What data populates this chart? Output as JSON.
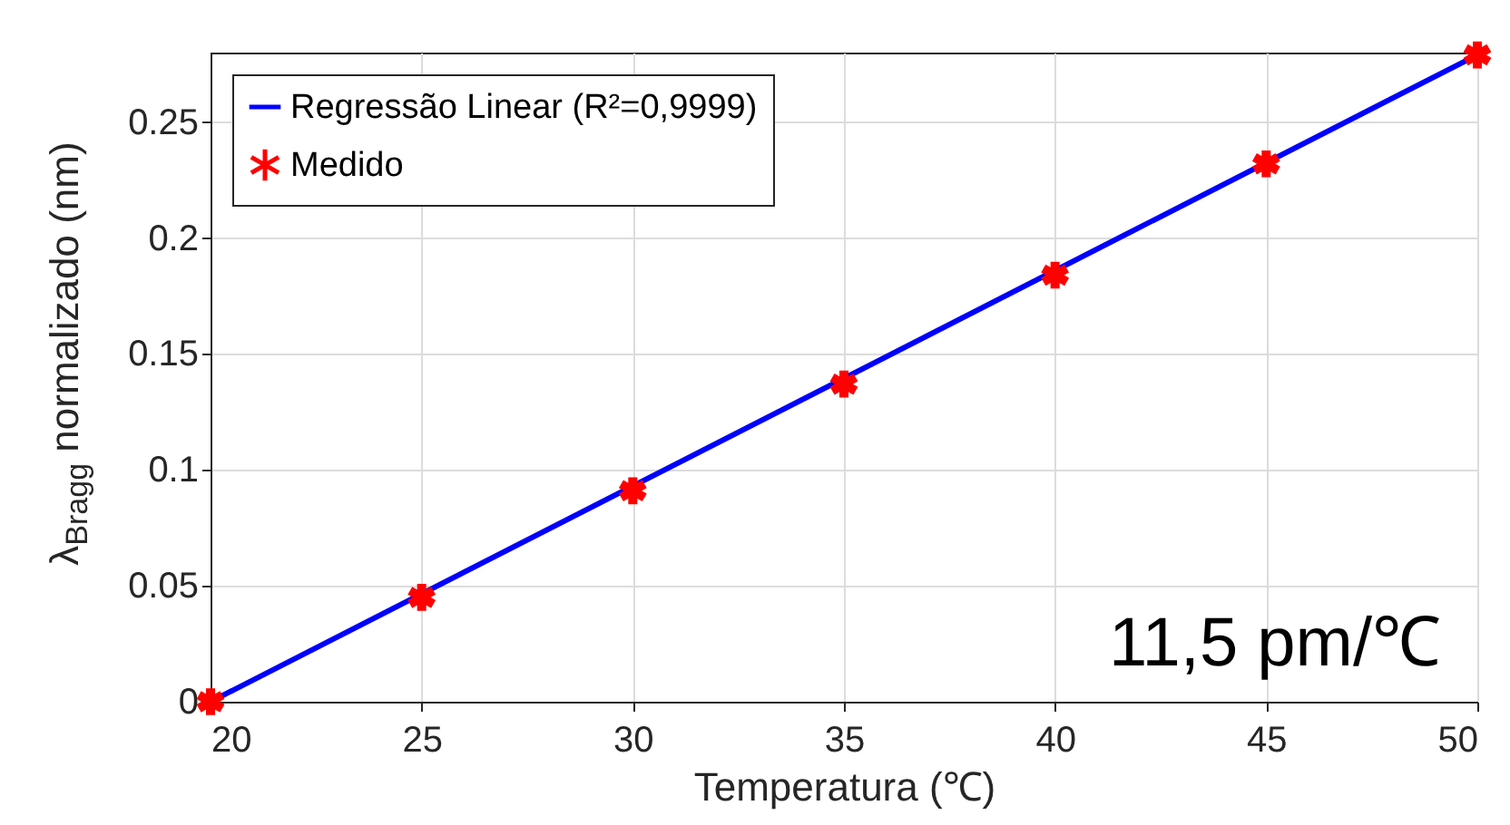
{
  "chart_data": {
    "type": "scatter",
    "xlabel": "Temperatura (℃)",
    "ylabel": "λ$_{Bragg}$ normalizado (nm)",
    "xlim": [
      20,
      50
    ],
    "xticks": [
      20,
      25,
      30,
      35,
      40,
      45,
      50
    ],
    "ylim": [
      0,
      0.28
    ],
    "yticks": [
      0,
      0.05,
      0.1,
      0.15,
      0.2,
      0.25
    ],
    "grid": true,
    "legend": "top left",
    "annotations": [
      "11,5 pm/℃"
    ],
    "series": [
      {
        "name": "Regressão Linear (R²=0,9999)",
        "type": "line",
        "line_style": "solid",
        "marker": "none",
        "color": "#0000ff",
        "x": [
          20,
          50
        ],
        "values": [
          0,
          0.279
        ]
      },
      {
        "name": "Medido",
        "marker": "cross",
        "color": "#ff0000",
        "x": [
          20,
          25,
          30,
          35,
          40,
          45,
          50
        ],
        "values": [
          0,
          0.045,
          0.091,
          0.137,
          0.184,
          0.232,
          0.279
        ]
      }
    ]
  }
}
